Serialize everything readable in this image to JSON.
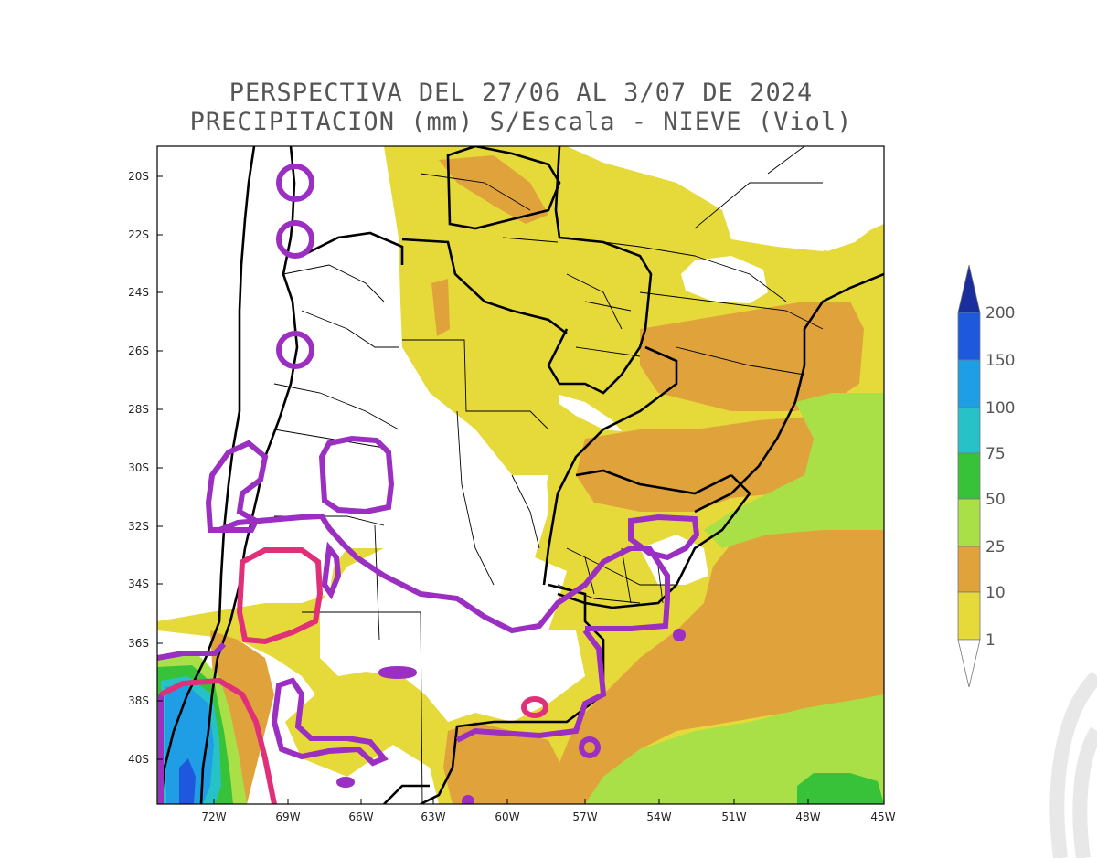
{
  "title_line1": "PERSPECTIVA DEL 27/06 AL 3/07 DE 2024",
  "title_line2": "PRECIPITACION (mm) S/Escala - NIEVE (Viol)",
  "lat_ticks": [
    "20S",
    "22S",
    "24S",
    "26S",
    "28S",
    "30S",
    "32S",
    "34S",
    "36S",
    "38S",
    "40S"
  ],
  "lon_ticks": [
    "72W",
    "69W",
    "66W",
    "63W",
    "60W",
    "57W",
    "54W",
    "51W",
    "48W",
    "45W"
  ],
  "colorbar": {
    "levels": [
      "1",
      "10",
      "25",
      "50",
      "75",
      "100",
      "150",
      "200"
    ],
    "colors": {
      "c1_10": "#e6d93a",
      "c10_25": "#e0a33c",
      "c25_50": "#a9e048",
      "c50_75": "#38c23a",
      "c75_100": "#27c2c8",
      "c100_150": "#1f9ee6",
      "c150_200": "#1e58dc",
      "c200": "#1a2d9c"
    }
  },
  "snow_color": "#9a2fc2",
  "extra_contour_color": "#e0307a"
}
